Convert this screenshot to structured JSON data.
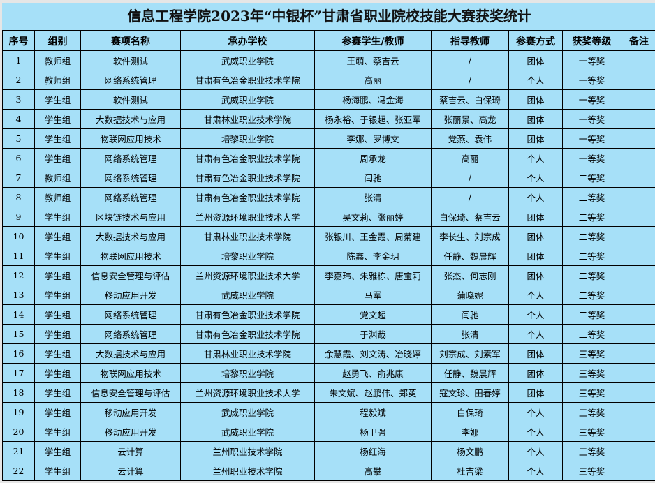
{
  "title": "信息工程学院2023年“中银杯”甘肃省职业院校技能大赛获奖统计",
  "headers": [
    "序号",
    "组别",
    "赛项名称",
    "承办学校",
    "参赛学生/教师",
    "指导教师",
    "参赛方式",
    "获奖等级",
    "备注"
  ],
  "rows": [
    [
      "1",
      "教师组",
      "软件测试",
      "武威职业学院",
      "王萌、蔡吉云",
      "/",
      "团体",
      "一等奖",
      ""
    ],
    [
      "2",
      "教师组",
      "网络系统管理",
      "甘肃有色冶金职业技术学院",
      "高丽",
      "/",
      "个人",
      "一等奖",
      ""
    ],
    [
      "3",
      "学生组",
      "软件测试",
      "武威职业学院",
      "杨海鹏、冯金海",
      "蔡吉云、白保琦",
      "团体",
      "一等奖",
      ""
    ],
    [
      "4",
      "学生组",
      "大数据技术与应用",
      "甘肃林业职业技术学院",
      "杨永裕、于银超、张亚军",
      "张丽景、高龙",
      "团体",
      "一等奖",
      ""
    ],
    [
      "5",
      "学生组",
      "物联网应用技术",
      "培黎职业学院",
      "李娜、罗博文",
      "党燕、袁伟",
      "团体",
      "一等奖",
      ""
    ],
    [
      "6",
      "学生组",
      "网络系统管理",
      "甘肃有色冶金职业技术学院",
      "周承龙",
      "高丽",
      "个人",
      "一等奖",
      ""
    ],
    [
      "7",
      "教师组",
      "网络系统管理",
      "甘肃有色冶金职业技术学院",
      "闫驰",
      "/",
      "个人",
      "二等奖",
      ""
    ],
    [
      "8",
      "教师组",
      "网络系统管理",
      "甘肃有色冶金职业技术学院",
      "张清",
      "/",
      "个人",
      "二等奖",
      ""
    ],
    [
      "9",
      "学生组",
      "区块链技术与应用",
      "兰州资源环境职业技术大学",
      "吴文莉、张丽婷",
      "白保琦、蔡吉云",
      "团体",
      "二等奖",
      ""
    ],
    [
      "10",
      "学生组",
      "大数据技术与应用",
      "甘肃林业职业技术学院",
      "张银川、王金霞、周菊建",
      "李长生、刘宗成",
      "团体",
      "二等奖",
      ""
    ],
    [
      "11",
      "学生组",
      "物联网应用技术",
      "培黎职业学院",
      "陈鑫、李金玥",
      "任静、魏晨辉",
      "团体",
      "二等奖",
      ""
    ],
    [
      "12",
      "学生组",
      "信息安全管理与评估",
      "兰州资源环境职业技术大学",
      "李嘉玮、朱雅栋、唐宝莉",
      "张杰、何志刚",
      "团体",
      "二等奖",
      ""
    ],
    [
      "13",
      "学生组",
      "移动应用开发",
      "武威职业学院",
      "马军",
      "蒲晓妮",
      "个人",
      "二等奖",
      ""
    ],
    [
      "14",
      "学生组",
      "网络系统管理",
      "甘肃有色冶金职业技术学院",
      "党文超",
      "闫驰",
      "个人",
      "二等奖",
      ""
    ],
    [
      "15",
      "学生组",
      "网络系统管理",
      "甘肃有色冶金职业技术学院",
      "于渊哉",
      "张清",
      "个人",
      "二等奖",
      ""
    ],
    [
      "16",
      "学生组",
      "大数据技术与应用",
      "甘肃林业职业技术学院",
      "余慧霞、刘文涛、冶晓婷",
      "刘宗成、刘素军",
      "团体",
      "三等奖",
      ""
    ],
    [
      "17",
      "学生组",
      "物联网应用技术",
      "培黎职业学院",
      "赵勇飞、俞兆康",
      "任静、魏晨辉",
      "团体",
      "三等奖",
      ""
    ],
    [
      "18",
      "学生组",
      "信息安全管理与评估",
      "兰州资源环境职业技术大学",
      "朱文斌、赵鹏伟、郑萸",
      "寇文珍、田春婷",
      "团体",
      "三等奖",
      ""
    ],
    [
      "19",
      "学生组",
      "移动应用开发",
      "武威职业学院",
      "程毅斌",
      "白保琦",
      "个人",
      "三等奖",
      ""
    ],
    [
      "20",
      "学生组",
      "移动应用开发",
      "武威职业学院",
      "杨卫强",
      "李娜",
      "个人",
      "三等奖",
      ""
    ],
    [
      "21",
      "学生组",
      "云计算",
      "兰州职业技术学院",
      "杨红海",
      "杨文鹏",
      "个人",
      "三等奖",
      ""
    ],
    [
      "22",
      "学生组",
      "云计算",
      "兰州职业技术学院",
      "高攀",
      "杜吉梁",
      "个人",
      "三等奖",
      ""
    ]
  ]
}
